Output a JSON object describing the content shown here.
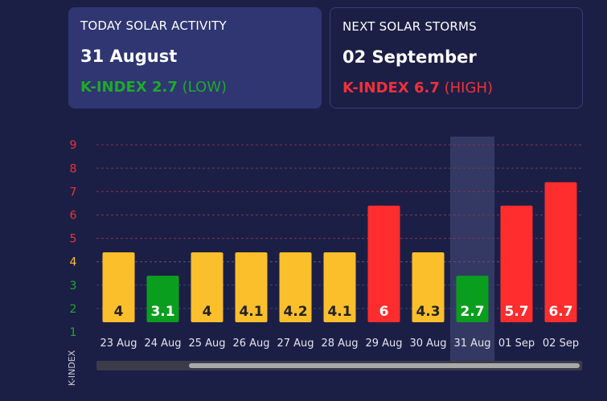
{
  "today": {
    "label": "TODAY SOLAR ACTIVITY",
    "date": "31 August",
    "kindex_label": "K-INDEX 2.7",
    "level": "(LOW)",
    "color": "#1eaa2a"
  },
  "next": {
    "label": "NEXT SOLAR STORMS",
    "date": "02 September",
    "kindex_label": "K-INDEX 6.7",
    "level": "(HIGH)",
    "color": "#f0303a"
  },
  "chart_data": {
    "type": "bar",
    "ylabel": "K-INDEX",
    "ylim": [
      1,
      9
    ],
    "yticks": [
      "1",
      "2",
      "3",
      "4",
      "5",
      "6",
      "7",
      "8",
      "9"
    ],
    "highlighted_category": "31 Aug",
    "categories": [
      "23 Aug",
      "24 Aug",
      "25 Aug",
      "26 Aug",
      "27 Aug",
      "28 Aug",
      "29 Aug",
      "30 Aug",
      "31 Aug",
      "01 Sep",
      "02 Sep"
    ],
    "bar_heights": [
      4.4,
      3.4,
      4.4,
      4.4,
      4.4,
      4.4,
      6.4,
      4.4,
      3.4,
      6.4,
      7.4
    ],
    "value_labels": [
      "4",
      "3.1",
      "4",
      "4.1",
      "4.2",
      "4.1",
      "6",
      "4.3",
      "2.7",
      "5.7",
      "6.7"
    ],
    "bar_colors": [
      "#fbbf2c",
      "#0a9e1e",
      "#fbbf2c",
      "#fbbf2c",
      "#fbbf2c",
      "#fbbf2c",
      "#ff2d2d",
      "#fbbf2c",
      "#0a9e1e",
      "#ff2d2d",
      "#ff2d2d"
    ],
    "tick_colors": {
      "low": "#1eaa2a",
      "moderate": "#fbbf2c",
      "high": "#f0303a"
    },
    "grid": true
  }
}
